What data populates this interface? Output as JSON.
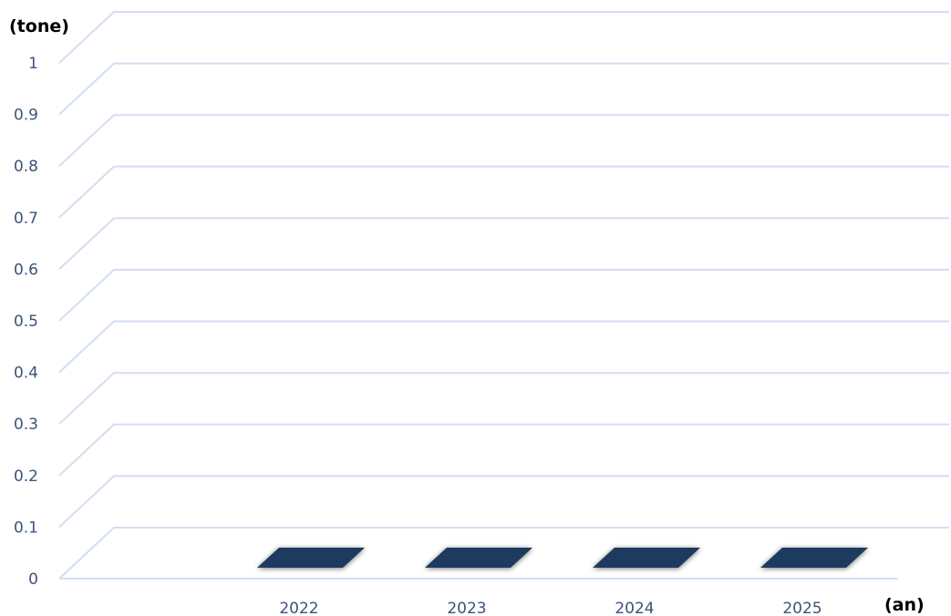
{
  "chart_data": {
    "type": "bar",
    "style": "3d-column",
    "title": "",
    "ylabel": "(tone)",
    "xlabel": "(an)",
    "categories": [
      "2022",
      "2023",
      "2024",
      "2025"
    ],
    "values": [
      0,
      0,
      0,
      0
    ],
    "ylim": [
      0,
      1
    ],
    "yticks": [
      "0",
      "0.1",
      "0.2",
      "0.3",
      "0.4",
      "0.5",
      "0.6",
      "0.7",
      "0.8",
      "0.9",
      "1"
    ],
    "grid": true,
    "legend": "none"
  },
  "colors": {
    "bar": "#1f3a5f",
    "grid": "#d3def0",
    "tick_label": "#3c5478",
    "axis_title": "#000000",
    "axis_line": "#d3def0"
  }
}
